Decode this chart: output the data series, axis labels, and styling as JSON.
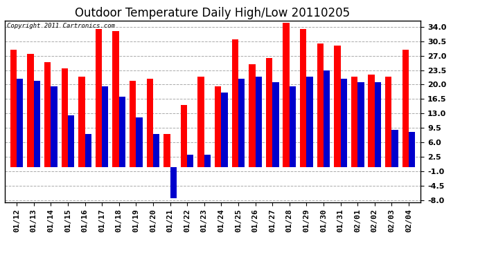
{
  "title": "Outdoor Temperature Daily High/Low 20110205",
  "copyright_text": "Copyright 2011 Cartronics.com",
  "dates": [
    "01/12",
    "01/13",
    "01/14",
    "01/15",
    "01/16",
    "01/17",
    "01/18",
    "01/19",
    "01/20",
    "01/21",
    "01/22",
    "01/23",
    "01/24",
    "01/25",
    "01/26",
    "01/27",
    "01/28",
    "01/29",
    "01/30",
    "01/31",
    "02/01",
    "02/02",
    "02/03",
    "02/04"
  ],
  "highs": [
    28.5,
    27.5,
    25.5,
    24.0,
    22.0,
    33.5,
    33.0,
    21.0,
    21.5,
    8.0,
    15.0,
    22.0,
    19.5,
    31.0,
    25.0,
    26.5,
    35.0,
    33.5,
    30.0,
    29.5,
    22.0,
    22.5,
    22.0,
    28.5
  ],
  "lows": [
    21.5,
    21.0,
    19.5,
    12.5,
    8.0,
    19.5,
    17.0,
    12.0,
    8.0,
    -7.5,
    3.0,
    3.0,
    18.0,
    21.5,
    22.0,
    20.5,
    19.5,
    22.0,
    23.5,
    21.5,
    20.5,
    20.5,
    9.0,
    8.5
  ],
  "high_color": "#ff0000",
  "low_color": "#0000cc",
  "ylim": [
    -8.5,
    35.5
  ],
  "yticks": [
    -8.0,
    -4.5,
    -1.0,
    2.5,
    6.0,
    9.5,
    13.0,
    16.5,
    20.0,
    23.5,
    27.0,
    30.5,
    34.0
  ],
  "background_color": "#ffffff",
  "grid_color": "#aaaaaa",
  "title_fontsize": 12,
  "tick_fontsize": 8,
  "bar_width": 0.38
}
